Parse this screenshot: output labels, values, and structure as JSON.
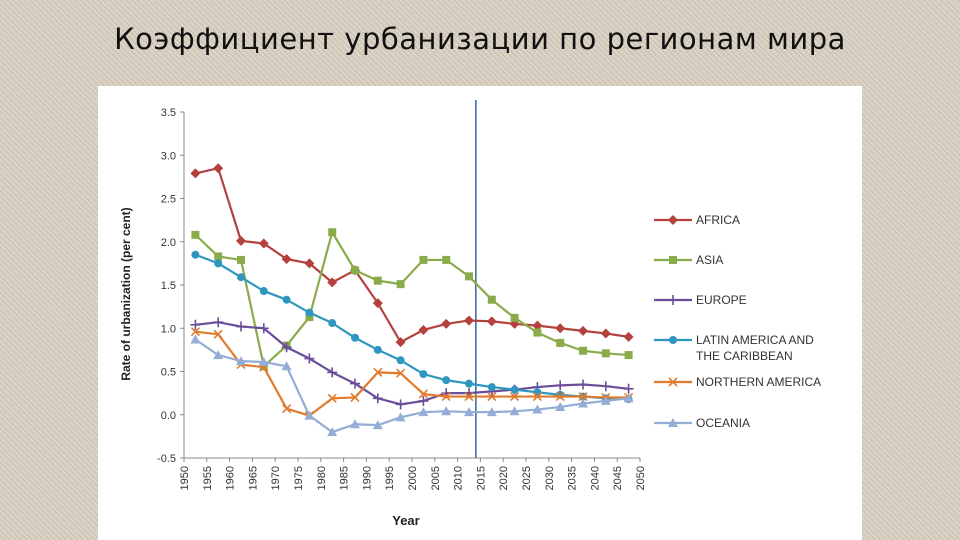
{
  "slide": {
    "title": "Коэффициент урбанизации по регионам мира"
  },
  "chart_data": {
    "type": "line",
    "xlabel": "Year",
    "ylabel": "Rate of urbanization  (per cent)",
    "ylim": [
      -0.5,
      3.5
    ],
    "yticks": [
      "3.5",
      "3.0",
      "2.5",
      "2.0",
      "1.5",
      "1.0",
      "0.5",
      "0.0",
      "-0.5"
    ],
    "xticks": [
      "1950",
      "1955",
      "1960",
      "1965",
      "1970",
      "1975",
      "1980",
      "1985",
      "1990",
      "1995",
      "2000",
      "2005",
      "2010",
      "2015",
      "2020",
      "2025",
      "2030",
      "2035",
      "2040",
      "2045",
      "2050"
    ],
    "x": [
      1952.5,
      1957.5,
      1962.5,
      1967.5,
      1972.5,
      1977.5,
      1982.5,
      1987.5,
      1992.5,
      1997.5,
      2002.5,
      2007.5,
      2012.5,
      2017.5,
      2022.5,
      2027.5,
      2032.5,
      2037.5,
      2042.5,
      2047.5
    ],
    "reference_line_year": 2014,
    "legend_position": "right",
    "series": [
      {
        "name": "AFRICA",
        "color": "#b5413e",
        "marker": "diamond",
        "values": [
          2.79,
          2.85,
          2.01,
          1.98,
          1.8,
          1.75,
          1.53,
          1.67,
          1.29,
          0.84,
          0.98,
          1.05,
          1.09,
          1.08,
          1.05,
          1.03,
          1.0,
          0.97,
          0.94,
          0.9
        ]
      },
      {
        "name": "ASIA",
        "color": "#8aab49",
        "marker": "square",
        "values": [
          2.08,
          1.83,
          1.79,
          0.56,
          0.8,
          1.13,
          2.11,
          1.67,
          1.55,
          1.51,
          1.79,
          1.79,
          1.6,
          1.33,
          1.12,
          0.95,
          0.83,
          0.74,
          0.71,
          0.69
        ]
      },
      {
        "name": "EUROPE",
        "color": "#6a4e9a",
        "marker": "plus",
        "values": [
          1.04,
          1.07,
          1.02,
          1.0,
          0.78,
          0.65,
          0.49,
          0.36,
          0.19,
          0.12,
          0.16,
          0.25,
          0.25,
          0.27,
          0.29,
          0.32,
          0.34,
          0.35,
          0.33,
          0.3
        ]
      },
      {
        "name": "LATIN AMERICA AND\nTHE CARIBBEAN",
        "color": "#2f97bf",
        "marker": "circle",
        "values": [
          1.85,
          1.75,
          1.59,
          1.43,
          1.33,
          1.18,
          1.06,
          0.89,
          0.75,
          0.63,
          0.47,
          0.4,
          0.36,
          0.32,
          0.29,
          0.26,
          0.23,
          0.21,
          0.19,
          0.18
        ]
      },
      {
        "name": "NORTHERN AMERICA",
        "color": "#e07b2e",
        "marker": "x",
        "values": [
          0.96,
          0.93,
          0.58,
          0.55,
          0.07,
          -0.01,
          0.19,
          0.2,
          0.49,
          0.48,
          0.24,
          0.21,
          0.21,
          0.21,
          0.21,
          0.21,
          0.21,
          0.21,
          0.2,
          0.2
        ]
      },
      {
        "name": "OCEANIA",
        "color": "#93add6",
        "marker": "triangle",
        "values": [
          0.87,
          0.69,
          0.62,
          0.61,
          0.56,
          -0.01,
          -0.2,
          -0.11,
          -0.12,
          -0.03,
          0.03,
          0.04,
          0.03,
          0.03,
          0.04,
          0.06,
          0.09,
          0.13,
          0.16,
          0.19
        ]
      }
    ]
  }
}
